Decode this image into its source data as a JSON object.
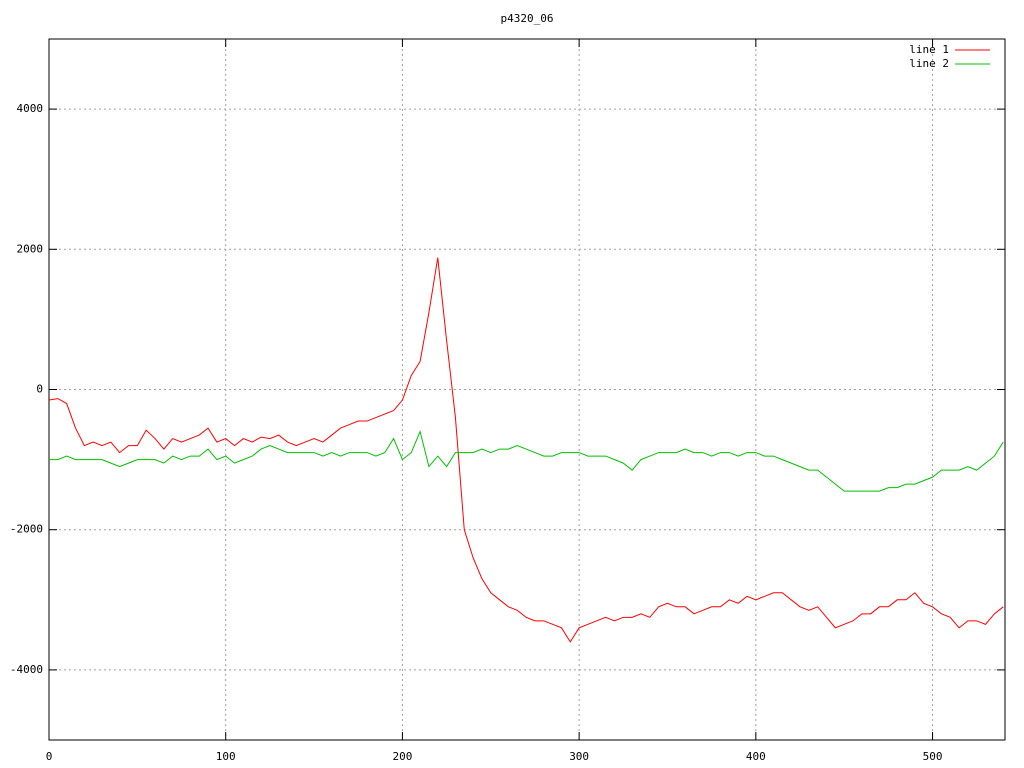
{
  "chart_data": {
    "type": "line",
    "title": "p4320_06",
    "x": [
      0,
      5,
      10,
      15,
      20,
      25,
      30,
      35,
      40,
      45,
      50,
      55,
      60,
      65,
      70,
      75,
      80,
      85,
      90,
      95,
      100,
      105,
      110,
      115,
      120,
      125,
      130,
      135,
      140,
      145,
      150,
      155,
      160,
      165,
      170,
      175,
      180,
      185,
      190,
      195,
      200,
      205,
      210,
      215,
      220,
      225,
      230,
      235,
      240,
      245,
      250,
      255,
      260,
      265,
      270,
      275,
      280,
      285,
      290,
      295,
      300,
      305,
      310,
      315,
      320,
      325,
      330,
      335,
      340,
      345,
      350,
      355,
      360,
      365,
      370,
      375,
      380,
      385,
      390,
      395,
      400,
      405,
      410,
      415,
      420,
      425,
      430,
      435,
      440,
      445,
      450,
      455,
      460,
      465,
      470,
      475,
      480,
      485,
      490,
      495,
      500,
      505,
      510,
      515,
      520,
      525,
      530,
      535,
      540
    ],
    "series": [
      {
        "name": "line 1",
        "color": "#ff0000",
        "values": [
          -150,
          -130,
          -200,
          -550,
          -800,
          -750,
          -800,
          -750,
          -900,
          -800,
          -800,
          -580,
          -700,
          -850,
          -700,
          -750,
          -700,
          -650,
          -550,
          -750,
          -700,
          -800,
          -700,
          -750,
          -680,
          -700,
          -650,
          -750,
          -800,
          -750,
          -700,
          -750,
          -650,
          -550,
          -500,
          -450,
          -450,
          -400,
          -350,
          -300,
          -150,
          200,
          400,
          1100,
          1880,
          700,
          -400,
          -2000,
          -2400,
          -2700,
          -2900,
          -3000,
          -3100,
          -3150,
          -3250,
          -3300,
          -3300,
          -3350,
          -3400,
          -3600,
          -3400,
          -3350,
          -3300,
          -3250,
          -3300,
          -3250,
          -3250,
          -3200,
          -3250,
          -3100,
          -3050,
          -3100,
          -3100,
          -3200,
          -3150,
          -3100,
          -3100,
          -3000,
          -3050,
          -2950,
          -3000,
          -2950,
          -2900,
          -2900,
          -3000,
          -3100,
          -3150,
          -3100,
          -3250,
          -3400,
          -3350,
          -3300,
          -3200,
          -3200,
          -3100,
          -3100,
          -3000,
          -3000,
          -2900,
          -3050,
          -3100,
          -3200,
          -3250,
          -3400,
          -3300,
          -3300,
          -3350,
          -3200,
          -3100
        ]
      },
      {
        "name": "line 2",
        "color": "#00c000",
        "values": [
          -1000,
          -1000,
          -950,
          -1000,
          -1000,
          -1000,
          -1000,
          -1050,
          -1100,
          -1050,
          -1000,
          -1000,
          -1000,
          -1050,
          -950,
          -1000,
          -950,
          -950,
          -850,
          -1000,
          -950,
          -1050,
          -1000,
          -950,
          -850,
          -800,
          -850,
          -900,
          -900,
          -900,
          -900,
          -950,
          -900,
          -950,
          -900,
          -900,
          -900,
          -950,
          -900,
          -700,
          -1000,
          -900,
          -600,
          -1100,
          -950,
          -1100,
          -900,
          -900,
          -900,
          -850,
          -900,
          -850,
          -850,
          -800,
          -850,
          -900,
          -950,
          -950,
          -900,
          -900,
          -900,
          -950,
          -950,
          -950,
          -1000,
          -1050,
          -1150,
          -1000,
          -950,
          -900,
          -900,
          -900,
          -850,
          -900,
          -900,
          -950,
          -900,
          -900,
          -950,
          -900,
          -900,
          -950,
          -950,
          -1000,
          -1050,
          -1100,
          -1150,
          -1150,
          -1250,
          -1350,
          -1450,
          -1450,
          -1450,
          -1450,
          -1450,
          -1400,
          -1400,
          -1350,
          -1350,
          -1300,
          -1250,
          -1150,
          -1150,
          -1150,
          -1100,
          -1150,
          -1050,
          -950,
          -750
        ]
      }
    ],
    "xlim": [
      0,
      541
    ],
    "ylim": [
      -5000,
      5000
    ],
    "xticks": [
      0,
      100,
      200,
      300,
      400,
      500
    ],
    "yticks": [
      -4000,
      -2000,
      0,
      2000,
      4000
    ],
    "grid": true,
    "legend": "top-right"
  }
}
